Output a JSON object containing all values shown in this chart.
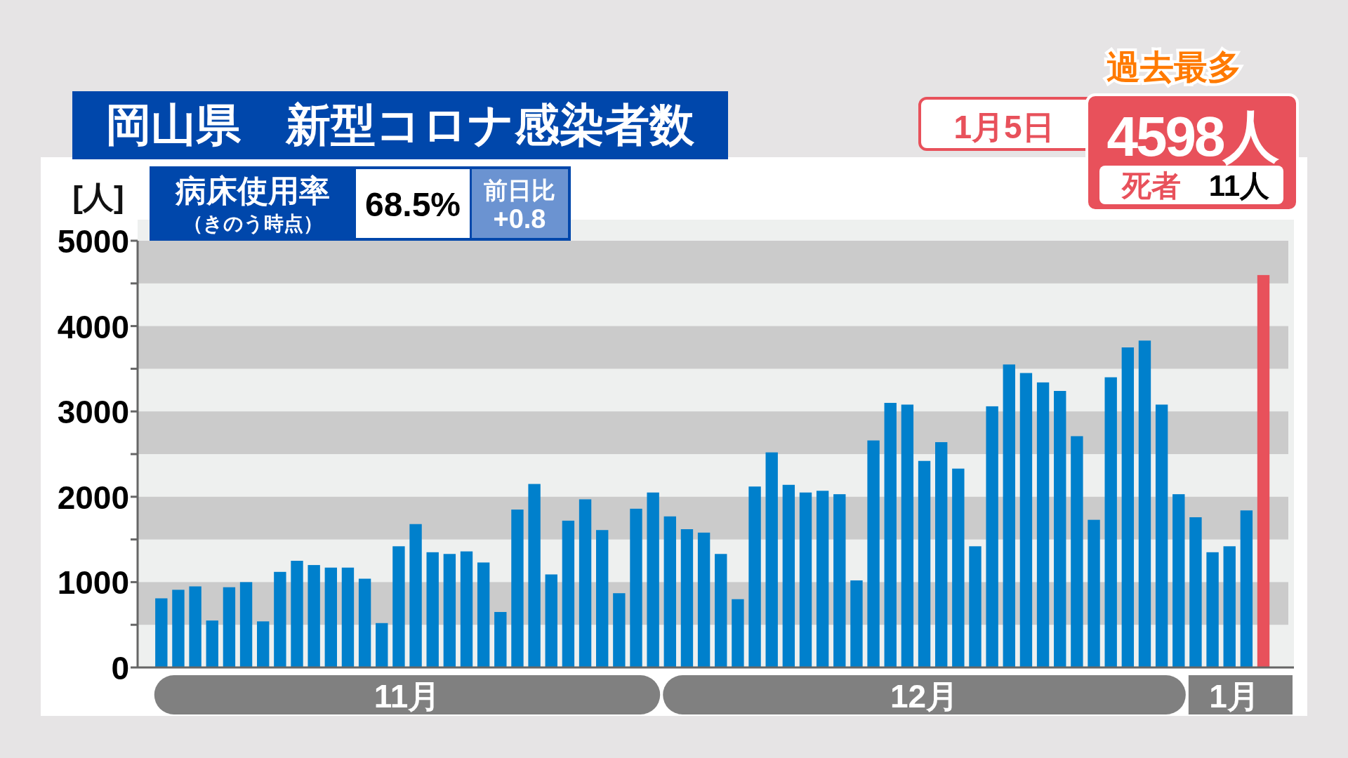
{
  "chart_data": {
    "type": "bar",
    "title": "岡山県　新型コロナ感染者数",
    "ylabel": "[人]",
    "categories": [
      null,
      null,
      null,
      null,
      null,
      null,
      null,
      null,
      null,
      null,
      null,
      null,
      null,
      null,
      null,
      null,
      null,
      null,
      null,
      null,
      null,
      null,
      null,
      null,
      null,
      null,
      null,
      null,
      null,
      null,
      null,
      null,
      null,
      null,
      null,
      null,
      null,
      null,
      null,
      null,
      null,
      null,
      null,
      null,
      null,
      null,
      null,
      null,
      null,
      null,
      null,
      null,
      null,
      null,
      null,
      null,
      null,
      null,
      null,
      null,
      null,
      null,
      null,
      null,
      null,
      null
    ],
    "values": [
      810,
      910,
      950,
      550,
      940,
      1000,
      540,
      1120,
      1250,
      1200,
      1170,
      1170,
      1040,
      520,
      1420,
      1680,
      1350,
      1330,
      1360,
      1230,
      650,
      1850,
      2150,
      1090,
      1720,
      1970,
      1610,
      870,
      1860,
      2050,
      1770,
      1620,
      1580,
      1330,
      800,
      2120,
      2520,
      2140,
      2050,
      2070,
      2030,
      1020,
      2660,
      3100,
      3080,
      2420,
      2640,
      2330,
      1420,
      3060,
      3550,
      3450,
      3340,
      3240,
      2710,
      1730,
      3400,
      3750,
      3830,
      3080,
      2030,
      1760,
      1350,
      1420,
      1840,
      4598
    ],
    "colors": [
      "#0080cc",
      "#0080cc",
      "#0080cc",
      "#0080cc",
      "#0080cc",
      "#0080cc",
      "#0080cc",
      "#0080cc",
      "#0080cc",
      "#0080cc",
      "#0080cc",
      "#0080cc",
      "#0080cc",
      "#0080cc",
      "#0080cc",
      "#0080cc",
      "#0080cc",
      "#0080cc",
      "#0080cc",
      "#0080cc",
      "#0080cc",
      "#0080cc",
      "#0080cc",
      "#0080cc",
      "#0080cc",
      "#0080cc",
      "#0080cc",
      "#0080cc",
      "#0080cc",
      "#0080cc",
      "#0080cc",
      "#0080cc",
      "#0080cc",
      "#0080cc",
      "#0080cc",
      "#0080cc",
      "#0080cc",
      "#0080cc",
      "#0080cc",
      "#0080cc",
      "#0080cc",
      "#0080cc",
      "#0080cc",
      "#0080cc",
      "#0080cc",
      "#0080cc",
      "#0080cc",
      "#0080cc",
      "#0080cc",
      "#0080cc",
      "#0080cc",
      "#0080cc",
      "#0080cc",
      "#0080cc",
      "#0080cc",
      "#0080cc",
      "#0080cc",
      "#0080cc",
      "#0080cc",
      "#0080cc",
      "#0080cc",
      "#0080cc",
      "#0080cc",
      "#0080cc",
      "#0080cc",
      "#e8515b"
    ],
    "ylim": [
      0,
      5000
    ],
    "yticks": [
      0,
      {
        "value": 500,
        "label": null
      },
      1000,
      {
        "value": 1500,
        "label": null
      },
      2000,
      {
        "value": 2500,
        "label": null
      },
      3000,
      {
        "value": 3500,
        "label": null
      },
      4000,
      {
        "value": 4500,
        "label": null
      },
      5000
    ],
    "bands": [
      {
        "axis": "y",
        "from": 500,
        "to": 1000,
        "color": "#cbcbcb"
      },
      {
        "axis": "y",
        "from": 1500,
        "to": 2000,
        "color": "#cbcbcb"
      },
      {
        "axis": "y",
        "from": 2500,
        "to": 3000,
        "color": "#cbcbcb"
      },
      {
        "axis": "y",
        "from": 3500,
        "to": 4000,
        "color": "#cbcbcb"
      },
      {
        "axis": "y",
        "from": 4500,
        "to": 5000,
        "color": "#cbcbcb"
      }
    ],
    "annotations": [
      "病床使用率",
      "（きのう時点）",
      "68.5%",
      "前日比",
      "+0.8",
      "過去最多",
      "1月5日",
      "4598人",
      "死者",
      "11人",
      "11月",
      "12月",
      "1月"
    ]
  }
}
